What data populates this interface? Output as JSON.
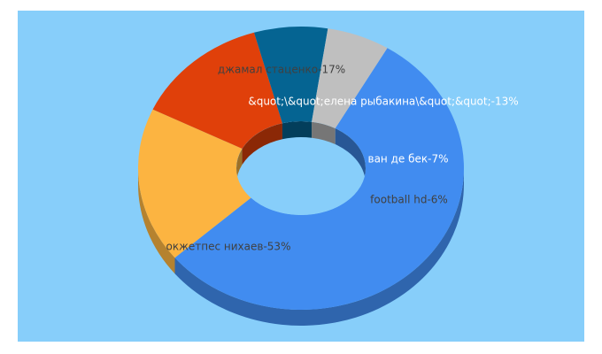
{
  "chart_data": {
    "type": "pie",
    "variant": "3d-donut",
    "slices": [
      {
        "label": "окжетпес нихаев-53%",
        "value": 53,
        "color": "#418cf0"
      },
      {
        "label": "джамал стаценко-17%",
        "value": 17,
        "color": "#fcb441"
      },
      {
        "label": "&quot;\\&quot;елена рыбакина\\&quot;&quot;-13%",
        "value": 13,
        "color": "#e0400a"
      },
      {
        "label": "ван де бек-7%",
        "value": 7,
        "color": "#056492"
      },
      {
        "label": "football hd-6%",
        "value": 6,
        "color": "#bfbfbf"
      }
    ],
    "background": "#87cefa"
  }
}
